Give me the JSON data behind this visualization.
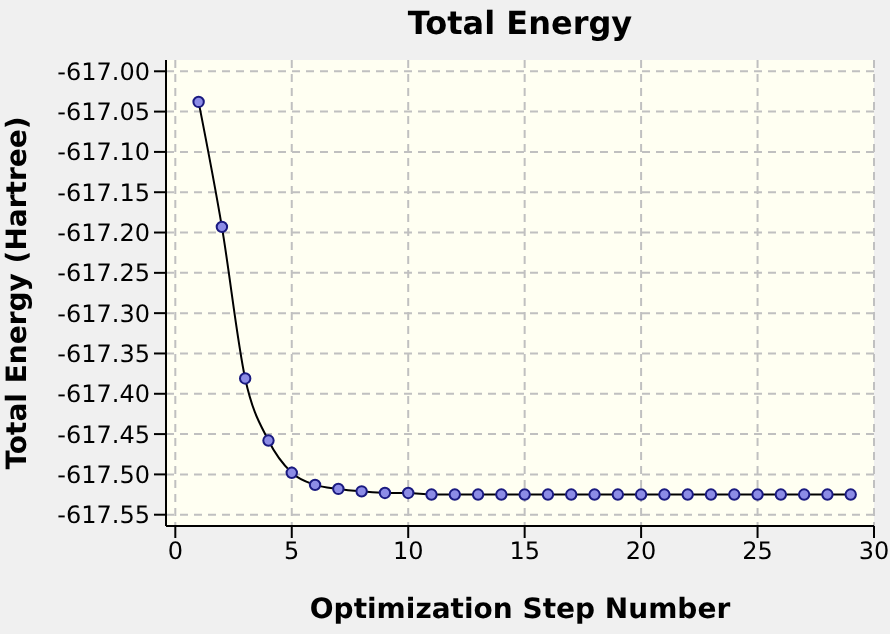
{
  "chart_data": {
    "type": "line",
    "title": "Total Energy",
    "xlabel": "Optimization Step Number",
    "ylabel": "Total Energy (Hartree)",
    "x": [
      1,
      2,
      3,
      4,
      5,
      6,
      7,
      8,
      9,
      10,
      11,
      12,
      13,
      14,
      15,
      16,
      17,
      18,
      19,
      20,
      21,
      22,
      23,
      24,
      25,
      26,
      27,
      28,
      29
    ],
    "series": [
      {
        "color": "#000000",
        "values": [
          -617.038,
          -617.193,
          -617.381,
          -617.458,
          -617.498,
          -617.513,
          -617.518,
          -617.521,
          -617.523,
          -617.523,
          -617.525,
          -617.525,
          -617.525,
          -617.525,
          -617.525,
          -617.525,
          -617.525,
          -617.525,
          -617.525,
          -617.525,
          -617.525,
          -617.525,
          -617.525,
          -617.525,
          -617.525,
          -617.525,
          -617.525,
          -617.525,
          -617.525
        ]
      }
    ],
    "xlim": [
      -0.4,
      30
    ],
    "xticks": [
      0,
      5,
      10,
      15,
      20,
      25,
      30
    ],
    "ylim": [
      -617.564,
      -616.986
    ],
    "yticks": [
      {
        "value": -617.0,
        "label": "-617.00"
      },
      {
        "value": -617.05,
        "label": "-617.05"
      },
      {
        "value": -617.1,
        "label": "-617.10"
      },
      {
        "value": -617.15,
        "label": "-617.15"
      },
      {
        "value": -617.2,
        "label": "-617.20"
      },
      {
        "value": -617.25,
        "label": "-617.25"
      },
      {
        "value": -617.3,
        "label": "-617.30"
      },
      {
        "value": -617.35,
        "label": "-617.35"
      },
      {
        "value": -617.4,
        "label": "-617.40"
      },
      {
        "value": -617.45,
        "label": "-617.45"
      },
      {
        "value": -617.5,
        "label": "-617.50"
      },
      {
        "value": -617.55,
        "label": "-617.55"
      }
    ],
    "grid": true,
    "marker": "circle",
    "line_style": "solid"
  }
}
